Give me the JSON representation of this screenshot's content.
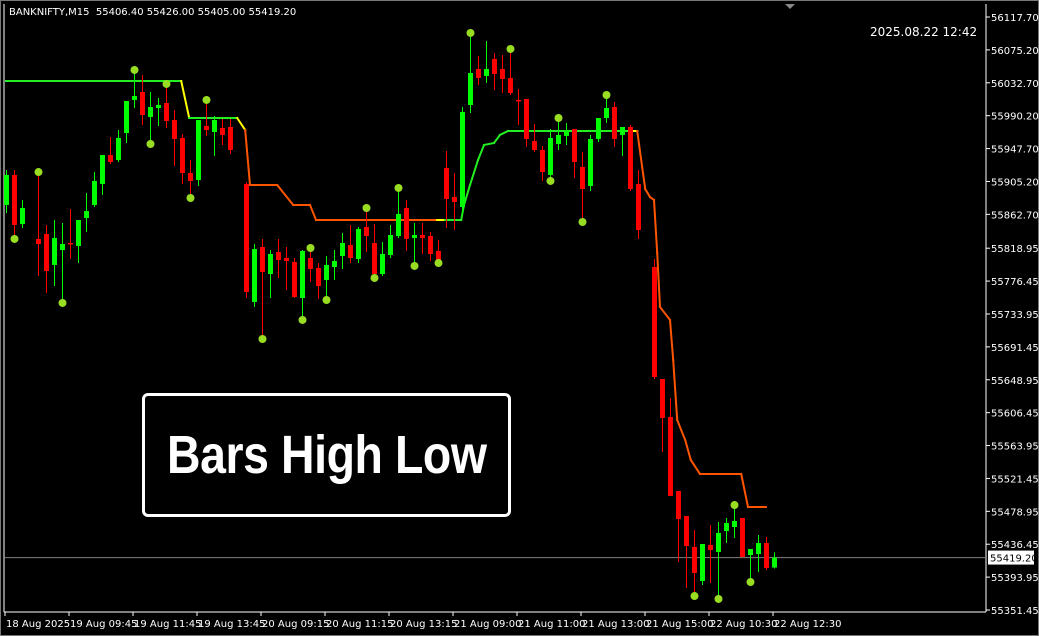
{
  "header": {
    "symbol": "BANKNIFTY,M15",
    "ohlc": "55406.40 55426.00 55405.00 55419.20"
  },
  "timestamp": "2025.08.22 12:42",
  "overlay_title": "Bars High Low",
  "current_price_label": "55419.20",
  "colors": {
    "background": "#000000",
    "bull": "#00ff00",
    "bear": "#ff0000",
    "dot": "#99dd22",
    "line_up": "#22ee22",
    "line_transition": "#ffff00",
    "line_down": "#ff5500",
    "axis_text": "#ffffff",
    "price_line": "#808080"
  },
  "chart_data": {
    "type": "candlestick",
    "title": "",
    "ylim": [
      55351.45,
      56117.7
    ],
    "grid": false,
    "y_ticks": [
      "56117.70",
      "56075.20",
      "56032.70",
      "55990.20",
      "55947.70",
      "55905.20",
      "55862.70",
      "55818.95",
      "55776.45",
      "55733.95",
      "55691.45",
      "55648.95",
      "55606.45",
      "55563.95",
      "55521.45",
      "55478.95",
      "55436.45",
      "55393.95",
      "55351.45"
    ],
    "x_ticks": [
      "18 Aug 2025",
      "19 Aug 09:45",
      "19 Aug 11:45",
      "19 Aug 13:45",
      "20 Aug 09:15",
      "20 Aug 11:15",
      "20 Aug 13:15",
      "21 Aug 09:00",
      "21 Aug 11:00",
      "21 Aug 13:00",
      "21 Aug 15:00",
      "22 Aug 10:30",
      "22 Aug 12:30"
    ],
    "current_price": 55419.2,
    "candles": [
      {
        "o": 55874.8,
        "h": 55920.0,
        "l": 55864.5,
        "c": 55913.6
      },
      {
        "o": 55913.6,
        "h": 55920.0,
        "l": 55832.2,
        "c": 55849.0,
        "dot": "low"
      },
      {
        "o": 55850.2,
        "h": 55881.3,
        "l": 55845.1,
        "c": 55870.9
      },
      {
        "o": 55830.9,
        "h": 55916.1,
        "l": 55783.1,
        "c": 55824.4,
        "dot": "high"
      },
      {
        "o": 55837.3,
        "h": 55849.0,
        "l": 55761.1,
        "c": 55789.5
      },
      {
        "o": 55797.3,
        "h": 55855.4,
        "l": 55770.1,
        "c": 55832.2
      },
      {
        "o": 55816.6,
        "h": 55851.5,
        "l": 55749.5,
        "c": 55824.4,
        "dot": "low"
      },
      {
        "o": 55825.7,
        "h": 55869.6,
        "l": 55805.0,
        "c": 55824.4
      },
      {
        "o": 55821.8,
        "h": 55855.4,
        "l": 55799.9,
        "c": 55855.4
      },
      {
        "o": 55858.0,
        "h": 55890.3,
        "l": 55839.9,
        "c": 55867.0
      },
      {
        "o": 55874.8,
        "h": 55917.4,
        "l": 55872.2,
        "c": 55905.8
      },
      {
        "o": 55901.9,
        "h": 55939.4,
        "l": 55887.7,
        "c": 55939.4
      },
      {
        "o": 55939.4,
        "h": 55962.7,
        "l": 55927.8,
        "c": 55930.4
      },
      {
        "o": 55932.9,
        "h": 55971.7,
        "l": 55930.4,
        "c": 55961.4
      },
      {
        "o": 55967.8,
        "h": 56009.2,
        "l": 55954.9,
        "c": 56009.2
      },
      {
        "o": 56010.5,
        "h": 56048.0,
        "l": 56000.1,
        "c": 56015.6,
        "dot": "high"
      },
      {
        "o": 56020.8,
        "h": 56042.8,
        "l": 55978.2,
        "c": 55991.1
      },
      {
        "o": 55988.5,
        "h": 56020.8,
        "l": 55954.9,
        "c": 56001.4,
        "dot": "low"
      },
      {
        "o": 56000.1,
        "h": 56013.1,
        "l": 55976.9,
        "c": 56004.0
      },
      {
        "o": 56006.6,
        "h": 56029.9,
        "l": 55974.3,
        "c": 55983.3,
        "dot": "high"
      },
      {
        "o": 55984.6,
        "h": 55997.6,
        "l": 55925.2,
        "c": 55960.1
      },
      {
        "o": 55961.4,
        "h": 55966.5,
        "l": 55901.9,
        "c": 55916.1
      },
      {
        "o": 55916.1,
        "h": 55932.9,
        "l": 55885.1,
        "c": 55905.8,
        "dot": "low"
      },
      {
        "o": 55907.1,
        "h": 55984.6,
        "l": 55899.4,
        "c": 55984.6
      },
      {
        "o": 55976.9,
        "h": 56009.2,
        "l": 55964.0,
        "c": 55971.7,
        "dot": "high"
      },
      {
        "o": 55969.1,
        "h": 55989.8,
        "l": 55938.1,
        "c": 55984.6
      },
      {
        "o": 55974.3,
        "h": 55985.9,
        "l": 55952.3,
        "c": 55965.3
      },
      {
        "o": 55975.6,
        "h": 55985.9,
        "l": 55940.7,
        "c": 55945.9
      },
      {
        "o": 55901.9,
        "h": 55904.0,
        "l": 55754.6,
        "c": 55762.4
      },
      {
        "o": 55749.5,
        "h": 55824.4,
        "l": 55743.0,
        "c": 55817.9
      },
      {
        "o": 55820.5,
        "h": 55830.9,
        "l": 55702.9,
        "c": 55788.2,
        "dot": "low"
      },
      {
        "o": 55785.6,
        "h": 55816.6,
        "l": 55754.6,
        "c": 55811.5
      },
      {
        "o": 55814.1,
        "h": 55830.9,
        "l": 55780.5,
        "c": 55803.7
      },
      {
        "o": 55806.3,
        "h": 55820.5,
        "l": 55765.0,
        "c": 55802.4
      },
      {
        "o": 55801.1,
        "h": 55806.3,
        "l": 55754.6,
        "c": 55755.9
      },
      {
        "o": 55754.6,
        "h": 55816.6,
        "l": 55727.5,
        "c": 55815.4,
        "dot": "low"
      },
      {
        "o": 55806.3,
        "h": 55817.9,
        "l": 55775.3,
        "c": 55792.1,
        "dot": "high"
      },
      {
        "o": 55793.4,
        "h": 55799.9,
        "l": 55753.3,
        "c": 55770.1
      },
      {
        "o": 55777.9,
        "h": 55808.9,
        "l": 55753.3,
        "c": 55797.3,
        "dot": "low"
      },
      {
        "o": 55794.7,
        "h": 55816.6,
        "l": 55777.9,
        "c": 55802.4
      },
      {
        "o": 55808.9,
        "h": 55838.6,
        "l": 55792.1,
        "c": 55825.7
      },
      {
        "o": 55823.1,
        "h": 55849.0,
        "l": 55799.9,
        "c": 55806.3
      },
      {
        "o": 55805.0,
        "h": 55846.4,
        "l": 55799.9,
        "c": 55843.8
      },
      {
        "o": 55846.4,
        "h": 55869.6,
        "l": 55814.1,
        "c": 55834.7,
        "dot": "high"
      },
      {
        "o": 55825.7,
        "h": 55850.2,
        "l": 55781.8,
        "c": 55785.6,
        "dot": "low"
      },
      {
        "o": 55785.6,
        "h": 55827.0,
        "l": 55783.1,
        "c": 55811.5
      },
      {
        "o": 55810.2,
        "h": 55849.0,
        "l": 55806.3,
        "c": 55836.0
      },
      {
        "o": 55834.7,
        "h": 55895.5,
        "l": 55832.2,
        "c": 55863.2,
        "dot": "high"
      },
      {
        "o": 55870.9,
        "h": 55881.3,
        "l": 55815.4,
        "c": 55830.9
      },
      {
        "o": 55832.2,
        "h": 55851.5,
        "l": 55797.3,
        "c": 55836.0,
        "dot": "low"
      },
      {
        "o": 55836.0,
        "h": 55851.5,
        "l": 55811.5,
        "c": 55832.2
      },
      {
        "o": 55834.7,
        "h": 55839.9,
        "l": 55802.4,
        "c": 55811.5
      },
      {
        "o": 55815.4,
        "h": 55829.6,
        "l": 55801.1,
        "c": 55803.7,
        "dot": "low"
      },
      {
        "o": 55922.6,
        "h": 55944.6,
        "l": 55845.1,
        "c": 55882.6
      },
      {
        "o": 55885.1,
        "h": 55916.1,
        "l": 55842.5,
        "c": 55878.7
      },
      {
        "o": 55872.2,
        "h": 56001.4,
        "l": 55861.9,
        "c": 55995.0
      },
      {
        "o": 56004.0,
        "h": 56095.8,
        "l": 55993.7,
        "c": 56045.4,
        "dot": "high"
      },
      {
        "o": 56050.5,
        "h": 56067.3,
        "l": 56029.9,
        "c": 56038.9
      },
      {
        "o": 56041.5,
        "h": 56086.7,
        "l": 56032.4,
        "c": 56050.5
      },
      {
        "o": 56063.5,
        "h": 56071.2,
        "l": 56023.4,
        "c": 56044.1
      },
      {
        "o": 56050.5,
        "h": 56068.6,
        "l": 56019.5,
        "c": 56037.6
      },
      {
        "o": 56038.9,
        "h": 56075.1,
        "l": 56016.9,
        "c": 56019.5,
        "dot": "high"
      },
      {
        "o": 56010.5,
        "h": 56024.7,
        "l": 55978.2,
        "c": 56009.2
      },
      {
        "o": 56011.8,
        "h": 56011.8,
        "l": 55949.7,
        "c": 55960.1
      },
      {
        "o": 55957.5,
        "h": 55979.5,
        "l": 55943.3,
        "c": 55945.9
      },
      {
        "o": 55945.9,
        "h": 55951.0,
        "l": 55905.8,
        "c": 55917.4
      },
      {
        "o": 55913.6,
        "h": 55973.0,
        "l": 55907.1,
        "c": 55961.4,
        "dot": "low"
      },
      {
        "o": 55953.6,
        "h": 55985.9,
        "l": 55945.9,
        "c": 55965.3,
        "dot": "high"
      },
      {
        "o": 55964.0,
        "h": 55980.8,
        "l": 55952.3,
        "c": 55970.4
      },
      {
        "o": 55973.0,
        "h": 55973.0,
        "l": 55909.7,
        "c": 55930.4
      },
      {
        "o": 55923.9,
        "h": 55943.3,
        "l": 55854.1,
        "c": 55895.5,
        "dot": "low"
      },
      {
        "o": 55899.4,
        "h": 55965.3,
        "l": 55892.9,
        "c": 55960.1
      },
      {
        "o": 55960.1,
        "h": 55987.2,
        "l": 55956.2,
        "c": 55987.2
      },
      {
        "o": 55987.2,
        "h": 56015.6,
        "l": 55980.8,
        "c": 56000.1,
        "dot": "high"
      },
      {
        "o": 56001.4,
        "h": 56007.9,
        "l": 55949.7,
        "c": 55960.1
      },
      {
        "o": 55965.3,
        "h": 55975.6,
        "l": 55938.1,
        "c": 55975.6
      },
      {
        "o": 55975.6,
        "h": 55978.2,
        "l": 55892.9,
        "c": 55895.5
      },
      {
        "o": 55901.9,
        "h": 55920.0,
        "l": 55830.9,
        "c": 55842.5
      },
      {
        "o": 55794.7,
        "h": 55805.0,
        "l": 55650.0,
        "c": 55652.5
      },
      {
        "o": 55650.0,
        "h": 55650.0,
        "l": 55555.6,
        "c": 55599.6
      },
      {
        "o": 55600.9,
        "h": 55625.4,
        "l": 55498.8,
        "c": 55498.8
      },
      {
        "o": 55505.2,
        "h": 55505.2,
        "l": 55413.5,
        "c": 55469.0
      },
      {
        "o": 55472.9,
        "h": 55472.9,
        "l": 55379.9,
        "c": 55434.2
      },
      {
        "o": 55432.9,
        "h": 55454.8,
        "l": 55370.8,
        "c": 55399.3,
        "dot": "low"
      },
      {
        "o": 55388.9,
        "h": 55436.7,
        "l": 55383.8,
        "c": 55436.7
      },
      {
        "o": 55435.5,
        "h": 55461.3,
        "l": 55386.4,
        "c": 55429.0
      },
      {
        "o": 55426.4,
        "h": 55465.2,
        "l": 55367.0,
        "c": 55451.0,
        "dot": "low"
      },
      {
        "o": 55453.5,
        "h": 55470.3,
        "l": 55438.1,
        "c": 55463.9
      },
      {
        "o": 55458.7,
        "h": 55485.8,
        "l": 55444.5,
        "c": 55466.5,
        "dot": "high"
      },
      {
        "o": 55470.3,
        "h": 55470.3,
        "l": 55419.9,
        "c": 55419.9
      },
      {
        "o": 55422.5,
        "h": 55430.3,
        "l": 55388.9,
        "c": 55430.3,
        "dot": "low"
      },
      {
        "o": 55423.8,
        "h": 55448.4,
        "l": 55400.6,
        "c": 55438.0
      },
      {
        "o": 55438.0,
        "h": 55445.8,
        "l": 55403.1,
        "c": 55405.7
      },
      {
        "o": 55406.4,
        "h": 55426.0,
        "l": 55405.0,
        "c": 55419.2
      }
    ],
    "indicator": [
      {
        "bar": 0,
        "price": 56035.0,
        "color": "up"
      },
      {
        "bar": 21.9,
        "price": 56035.0,
        "color": "transition"
      },
      {
        "bar": 22.9,
        "price": 55987.2,
        "color": "up"
      },
      {
        "bar": 28.9,
        "price": 55987.2,
        "color": "transition"
      },
      {
        "bar": 29.9,
        "price": 55971.7,
        "color": "down"
      },
      {
        "bar": 30.5,
        "price": 55900.6,
        "color": "down"
      },
      {
        "bar": 33.9,
        "price": 55900.6,
        "color": "down"
      },
      {
        "bar": 35.9,
        "price": 55874.8,
        "color": "down"
      },
      {
        "bar": 38,
        "price": 55874.8,
        "color": "down"
      },
      {
        "bar": 38.75,
        "price": 55855.4,
        "color": "down"
      },
      {
        "bar": 53.9,
        "price": 55855.4,
        "color": "transition"
      },
      {
        "bar": 54.9,
        "price": 55855.4,
        "color": "up"
      },
      {
        "bar": 56.9,
        "price": 55855.4,
        "color": "up"
      },
      {
        "bar": 57.25,
        "price": 55874.8,
        "color": "up"
      },
      {
        "bar": 58,
        "price": 55900.6,
        "color": "up"
      },
      {
        "bar": 59,
        "price": 55932.9,
        "color": "up"
      },
      {
        "bar": 59.75,
        "price": 55952.3,
        "color": "up"
      },
      {
        "bar": 61,
        "price": 55954.9,
        "color": "up"
      },
      {
        "bar": 61.75,
        "price": 55965.3,
        "color": "up"
      },
      {
        "bar": 62.75,
        "price": 55970.4,
        "color": "up"
      },
      {
        "bar": 78,
        "price": 55970.4,
        "color": "transition"
      },
      {
        "bar": 78.9,
        "price": 55970.4,
        "color": "down"
      },
      {
        "bar": 79.9,
        "price": 55895.5,
        "color": "down"
      },
      {
        "bar": 80.5,
        "price": 55885.1,
        "color": "down"
      },
      {
        "bar": 81,
        "price": 55881.3,
        "color": "down"
      },
      {
        "bar": 81.4,
        "price": 55812.8,
        "color": "down"
      },
      {
        "bar": 81.75,
        "price": 55743.0,
        "color": "down"
      },
      {
        "bar": 83,
        "price": 55726.2,
        "color": "down"
      },
      {
        "bar": 83.4,
        "price": 55674.5,
        "color": "down"
      },
      {
        "bar": 83.9,
        "price": 55597.0,
        "color": "down"
      },
      {
        "bar": 84.9,
        "price": 55571.1,
        "color": "down"
      },
      {
        "bar": 85.6,
        "price": 55545.3,
        "color": "down"
      },
      {
        "bar": 86.75,
        "price": 55527.2,
        "color": "down"
      },
      {
        "bar": 91.9,
        "price": 55527.2,
        "color": "down"
      },
      {
        "bar": 92.75,
        "price": 55484.5,
        "color": "down"
      },
      {
        "bar": 95,
        "price": 55484.5,
        "color": "down"
      }
    ]
  }
}
